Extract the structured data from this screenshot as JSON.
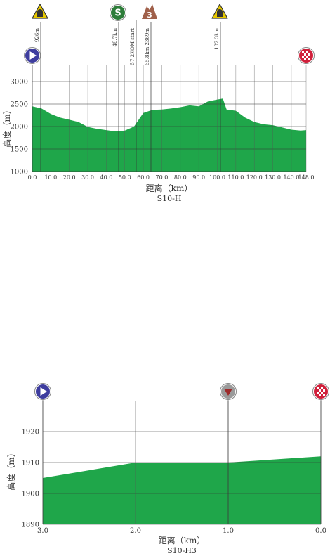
{
  "charts": [
    {
      "id": "stage-profile",
      "subtitle": "S10-H",
      "xlabel": "距离（km）",
      "ylabel": "高度（m）",
      "x_tick_labels": [
        "0.0",
        "10.0",
        "20.0",
        "30.0",
        "40.0",
        "50.0",
        "60.0",
        "70.0",
        "80.0",
        "90.0",
        "100.0",
        "110.0",
        "120.0",
        "130.0",
        "140.0",
        "148.0"
      ],
      "y_tick_labels": [
        "1000",
        "1500",
        "2000",
        "2500",
        "3000"
      ],
      "annotations": [
        {
          "text": "926m",
          "icon": "tunnel-icon"
        },
        {
          "text": "48.7km",
          "icon": "sprint-icon"
        },
        {
          "text": "57.2KOM start",
          "icon": "kom-start-icon"
        },
        {
          "text": "65.8km 2369m",
          "icon": "kom-3-icon"
        },
        {
          "text": "102.3km",
          "icon": "tunnel-icon"
        }
      ],
      "start_icon": "start-play-icon",
      "finish_icon": "finish-flag-icon"
    },
    {
      "id": "final-km",
      "subtitle": "S10-H3",
      "xlabel": "距离（km）",
      "ylabel": "高度（m）",
      "x_tick_labels": [
        "3.0",
        "2.0",
        "1.0",
        "0.0"
      ],
      "y_tick_labels": [
        "1890",
        "1900",
        "1910",
        "1920"
      ],
      "start_icon": "start-play-icon",
      "flamme-rouge_icon": "one-km-triangle-icon",
      "finish_icon": "finish-flag-icon"
    }
  ],
  "colors": {
    "fill": "#1fa64a",
    "grid": "#555555",
    "start": "#3e3d9e",
    "finish": "#d0203b",
    "sprint": "#2e7d3a",
    "kom": "#a0604a",
    "tunnel": "#e6c800",
    "one_km": "#9e2a2a"
  },
  "chart_data": [
    {
      "type": "area",
      "title": "",
      "xlabel": "距离（km）",
      "ylabel": "高度（m）",
      "xlim": [
        0,
        148
      ],
      "ylim": [
        1000,
        3000
      ],
      "x_ticks": [
        0,
        10,
        20,
        30,
        40,
        50,
        60,
        70,
        80,
        90,
        100,
        110,
        120,
        130,
        140,
        148
      ],
      "y_ticks": [
        1000,
        1500,
        2000,
        2500,
        3000
      ],
      "grid": true,
      "x": [
        0,
        5,
        10,
        15,
        20,
        25,
        30,
        35,
        40,
        45,
        50,
        55,
        60,
        65,
        70,
        75,
        80,
        85,
        90,
        95,
        100,
        103,
        105,
        110,
        115,
        120,
        125,
        130,
        135,
        140,
        145,
        148
      ],
      "y": [
        2450,
        2400,
        2280,
        2200,
        2150,
        2100,
        1990,
        1950,
        1920,
        1890,
        1910,
        2000,
        2300,
        2370,
        2380,
        2400,
        2430,
        2470,
        2450,
        2560,
        2600,
        2620,
        2380,
        2350,
        2200,
        2100,
        2050,
        2030,
        1980,
        1930,
        1910,
        1920
      ],
      "subtitle": "S10-H"
    },
    {
      "type": "area",
      "title": "",
      "xlabel": "距离（km）",
      "ylabel": "高度（m）",
      "xlim": [
        3,
        0
      ],
      "ylim": [
        1890,
        1930
      ],
      "x_ticks": [
        3,
        2,
        1,
        0
      ],
      "y_ticks": [
        1890,
        1900,
        1910,
        1920
      ],
      "grid": true,
      "x": [
        3.0,
        2.0,
        1.0,
        0.0
      ],
      "y": [
        1905,
        1910,
        1910,
        1912
      ],
      "subtitle": "S10-H3"
    }
  ]
}
